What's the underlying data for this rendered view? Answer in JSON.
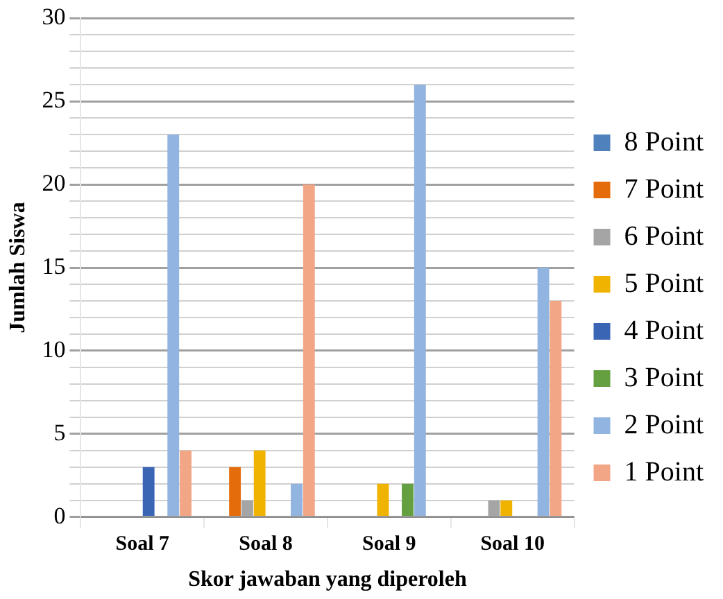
{
  "chart_data": {
    "type": "bar",
    "xlabel": "Skor jawaban yang diperoleh",
    "ylabel": "Jumlah Siswa",
    "categories": [
      "Soal 7",
      "Soal 8",
      "Soal 9",
      "Soal 10"
    ],
    "series": [
      {
        "name": "8 Point",
        "color": "#4f81bd",
        "values": [
          0,
          0,
          0,
          0
        ]
      },
      {
        "name": "7 Point",
        "color": "#e46c0a",
        "values": [
          0,
          3,
          0,
          0
        ]
      },
      {
        "name": "6 Point",
        "color": "#a5a5a5",
        "values": [
          0,
          1,
          0,
          1
        ]
      },
      {
        "name": "5 Point",
        "color": "#f0b400",
        "values": [
          0,
          4,
          2,
          1
        ]
      },
      {
        "name": "4 Point",
        "color": "#3a64b4",
        "values": [
          3,
          0,
          0,
          0
        ]
      },
      {
        "name": "3 Point",
        "color": "#64a040",
        "values": [
          0,
          0,
          2,
          0
        ]
      },
      {
        "name": "2 Point",
        "color": "#92b4e0",
        "values": [
          23,
          2,
          26,
          15
        ]
      },
      {
        "name": "1 Point",
        "color": "#f2a686",
        "values": [
          4,
          20,
          0,
          13
        ]
      }
    ],
    "ylim": [
      0,
      30
    ],
    "yticks": [
      0,
      {
        "value": 1,
        "label": null
      },
      {
        "value": 2,
        "label": null
      },
      {
        "value": 3,
        "label": null
      },
      {
        "value": 4,
        "label": null
      },
      5,
      {
        "value": 6,
        "label": null
      },
      {
        "value": 7,
        "label": null
      },
      {
        "value": 8,
        "label": null
      },
      {
        "value": 9,
        "label": null
      },
      10,
      {
        "value": 11,
        "label": null
      },
      {
        "value": 12,
        "label": null
      },
      {
        "value": 13,
        "label": null
      },
      {
        "value": 14,
        "label": null
      },
      15,
      {
        "value": 16,
        "label": null
      },
      {
        "value": 17,
        "label": null
      },
      {
        "value": 18,
        "label": null
      },
      {
        "value": 19,
        "label": null
      },
      20,
      {
        "value": 21,
        "label": null
      },
      {
        "value": 22,
        "label": null
      },
      {
        "value": 23,
        "label": null
      },
      {
        "value": 24,
        "label": null
      },
      25,
      {
        "value": 26,
        "label": null
      },
      {
        "value": 27,
        "label": null
      },
      {
        "value": 28,
        "label": null
      },
      {
        "value": 29,
        "label": null
      },
      30
    ],
    "grid": true,
    "legend": "right"
  }
}
